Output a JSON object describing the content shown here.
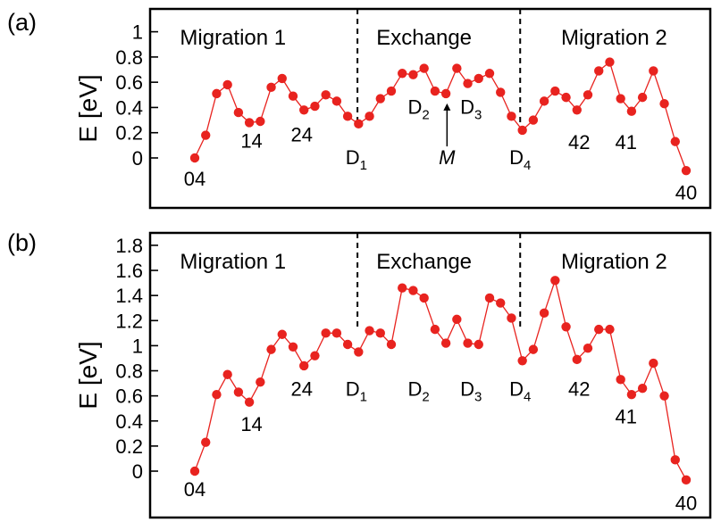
{
  "chart_data": [
    {
      "panel": "(a)",
      "type": "line",
      "ylabel": "E [eV]",
      "ylim": [
        -0.2,
        1.1
      ],
      "yticks": [
        0,
        0.2,
        0.4,
        0.6,
        0.8,
        1
      ],
      "ytick_labels": [
        "0",
        "0.2",
        "0.4",
        "0.6",
        "0.8",
        "1"
      ],
      "regions": [
        "Migration 1",
        "Exchange",
        "Migration 2"
      ],
      "color": "#e8231f",
      "x": [
        0,
        1,
        2,
        3,
        4,
        5,
        6,
        7,
        8,
        9,
        10,
        11,
        12,
        13,
        14,
        15,
        16,
        17,
        18,
        19,
        20,
        21,
        22,
        23,
        24,
        25,
        26,
        27,
        28,
        29,
        30,
        31,
        32,
        33,
        34,
        35,
        36,
        37,
        38,
        39,
        40,
        41,
        42,
        43,
        44,
        45
      ],
      "values": [
        0.0,
        0.18,
        0.51,
        0.58,
        0.36,
        0.28,
        0.29,
        0.56,
        0.63,
        0.49,
        0.38,
        0.41,
        0.5,
        0.45,
        0.33,
        0.27,
        0.33,
        0.47,
        0.53,
        0.67,
        0.66,
        0.71,
        0.53,
        0.51,
        0.71,
        0.59,
        0.63,
        0.67,
        0.52,
        0.33,
        0.22,
        0.3,
        0.45,
        0.53,
        0.48,
        0.38,
        0.5,
        0.69,
        0.76,
        0.47,
        0.37,
        0.48,
        0.69,
        0.43,
        0.13,
        -0.1
      ],
      "dividers_x": [
        14.9,
        29.8
      ],
      "annotations": [
        {
          "text": "04",
          "x": 0,
          "y": -0.22
        },
        {
          "text": "14",
          "x": 5.2,
          "y": 0.08
        },
        {
          "text": "24",
          "x": 9.8,
          "y": 0.13
        },
        {
          "text": "D",
          "sub": "1",
          "x": 14.8,
          "y": -0.05
        },
        {
          "text": "D",
          "sub": "2",
          "x": 20.5,
          "y": 0.35
        },
        {
          "text": "D",
          "sub": "3",
          "x": 25.3,
          "y": 0.35
        },
        {
          "text": "M",
          "x": 23.1,
          "y": -0.05,
          "italic": true,
          "arrow": true
        },
        {
          "text": "D",
          "sub": "4",
          "x": 29.8,
          "y": -0.05
        },
        {
          "text": "42",
          "x": 35.2,
          "y": 0.07
        },
        {
          "text": "41",
          "x": 39.5,
          "y": 0.07
        },
        {
          "text": "40",
          "x": 45.0,
          "y": -0.33
        }
      ]
    },
    {
      "panel": "(b)",
      "type": "line",
      "ylabel": "E [eV]",
      "ylim": [
        -0.25,
        1.9
      ],
      "yticks": [
        0,
        0.2,
        0.4,
        0.6,
        0.8,
        1,
        1.2,
        1.4,
        1.6,
        1.8
      ],
      "ytick_labels": [
        "0",
        "0.2",
        "0.4",
        "0.6",
        "0.8",
        "1",
        "1.2",
        "1.4",
        "1.6",
        "1.8"
      ],
      "regions": [
        "Migration 1",
        "Exchange",
        "Migration 2"
      ],
      "color": "#e8231f",
      "x": [
        0,
        1,
        2,
        3,
        4,
        5,
        6,
        7,
        8,
        9,
        10,
        11,
        12,
        13,
        14,
        15,
        16,
        17,
        18,
        19,
        20,
        21,
        22,
        23,
        24,
        25,
        26,
        27,
        28,
        29,
        30,
        31,
        32,
        33,
        34,
        35,
        36,
        37,
        38,
        39,
        40,
        41,
        42,
        43,
        44,
        45
      ],
      "values": [
        0.0,
        0.23,
        0.61,
        0.77,
        0.63,
        0.55,
        0.71,
        0.97,
        1.09,
        0.99,
        0.84,
        0.92,
        1.1,
        1.1,
        1.01,
        0.95,
        1.12,
        1.1,
        1.01,
        1.46,
        1.44,
        1.38,
        1.13,
        1.02,
        1.21,
        1.02,
        1.01,
        1.38,
        1.34,
        1.22,
        0.88,
        0.97,
        1.26,
        1.52,
        1.15,
        0.89,
        0.98,
        1.13,
        1.13,
        0.73,
        0.61,
        0.66,
        0.86,
        0.6,
        0.09,
        -0.07
      ],
      "dividers_x": [
        14.9,
        29.8
      ],
      "annotations": [
        {
          "text": "04",
          "x": 0,
          "y": -0.2
        },
        {
          "text": "14",
          "x": 5.2,
          "y": 0.32
        },
        {
          "text": "24",
          "x": 9.8,
          "y": 0.6
        },
        {
          "text": "D",
          "sub": "1",
          "x": 14.8,
          "y": 0.6
        },
        {
          "text": "D",
          "sub": "2",
          "x": 20.5,
          "y": 0.6
        },
        {
          "text": "D",
          "sub": "3",
          "x": 25.3,
          "y": 0.6
        },
        {
          "text": "D",
          "sub": "4",
          "x": 29.8,
          "y": 0.6
        },
        {
          "text": "42",
          "x": 35.2,
          "y": 0.6
        },
        {
          "text": "41",
          "x": 39.5,
          "y": 0.38
        },
        {
          "text": "40",
          "x": 45.0,
          "y": -0.31
        }
      ]
    }
  ]
}
